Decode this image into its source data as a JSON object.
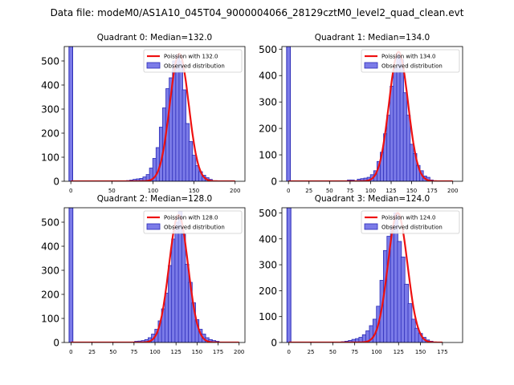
{
  "figure": {
    "suptitle": "Data file: modeM0/AS1A10_045T04_9000004066_28129cztM0_level2_quad_clean.evt"
  },
  "colors": {
    "bar_fill": "#7b7be8",
    "bar_edge": "#2b2bb8",
    "poisson_line": "#ee1111"
  },
  "chart_data": [
    {
      "type": "bar",
      "title": "Quadrant 0: Median=132.0",
      "xlim": [
        -8,
        212
      ],
      "ylim": [
        0,
        560
      ],
      "xticks": [
        0,
        50,
        100,
        150,
        200
      ],
      "yticks": [
        0,
        100,
        200,
        300,
        400,
        500
      ],
      "legend": [
        "Poission with 132.0",
        "Observed distribution"
      ],
      "legend_position": "top-right",
      "bin_width": 4.5,
      "spike": {
        "x": 0,
        "value": 560
      },
      "histogram": {
        "x": [
          70,
          74,
          78,
          82,
          86,
          90,
          94,
          98,
          102,
          106,
          110,
          114,
          118,
          122,
          126,
          130,
          134,
          138,
          142,
          146,
          150,
          154,
          158,
          162,
          166,
          170
        ],
        "values": [
          3,
          5,
          8,
          10,
          12,
          18,
          28,
          55,
          95,
          140,
          225,
          305,
          385,
          430,
          500,
          525,
          500,
          380,
          240,
          165,
          108,
          65,
          40,
          25,
          15,
          8
        ]
      },
      "poisson": {
        "mean": 132.0,
        "peak": 530
      }
    },
    {
      "type": "bar",
      "title": "Quadrant 1: Median=134.0",
      "xlim": [
        -8,
        212
      ],
      "ylim": [
        0,
        510
      ],
      "xticks": [
        0,
        25,
        50,
        75,
        100,
        125,
        150,
        175,
        200
      ],
      "yticks": [
        0,
        100,
        200,
        300,
        400,
        500
      ],
      "legend": [
        "Poission with 134.0",
        "Observed distribution"
      ],
      "legend_position": "top-right",
      "bin_width": 4.5,
      "spike": {
        "x": 0,
        "value": 510
      },
      "histogram": {
        "x": [
          74,
          78,
          86,
          90,
          94,
          98,
          102,
          106,
          110,
          114,
          118,
          122,
          126,
          130,
          134,
          138,
          142,
          146,
          150,
          154,
          158,
          162,
          166,
          170,
          174
        ],
        "values": [
          5,
          5,
          8,
          10,
          12,
          15,
          25,
          40,
          75,
          110,
          180,
          250,
          360,
          430,
          480,
          460,
          335,
          250,
          140,
          105,
          60,
          40,
          20,
          15,
          5
        ]
      },
      "poisson": {
        "mean": 134.0,
        "peak": 490
      }
    },
    {
      "type": "bar",
      "title": "Quadrant 2: Median=128.0",
      "xlim": [
        -8,
        207
      ],
      "ylim": [
        0,
        560
      ],
      "xticks": [
        0,
        25,
        50,
        75,
        100,
        125,
        150,
        175,
        200
      ],
      "yticks": [
        0,
        100,
        200,
        300,
        400,
        500
      ],
      "legend": [
        "Poission with 128.0",
        "Observed distribution"
      ],
      "legend_position": "top-right",
      "bin_width": 4.5,
      "spike": {
        "x": 0,
        "value": 560
      },
      "histogram": {
        "x": [
          78,
          82,
          86,
          90,
          94,
          98,
          102,
          106,
          110,
          114,
          118,
          122,
          126,
          130,
          134,
          138,
          142,
          146,
          150,
          154,
          158,
          162,
          166,
          170,
          174
        ],
        "values": [
          5,
          6,
          8,
          12,
          20,
          35,
          55,
          90,
          140,
          205,
          320,
          430,
          500,
          545,
          450,
          325,
          250,
          165,
          95,
          55,
          35,
          20,
          12,
          8,
          5
        ]
      },
      "poisson": {
        "mean": 128.0,
        "peak": 530
      }
    },
    {
      "type": "bar",
      "title": "Quadrant 3: Median=124.0",
      "xlim": [
        -8,
        198
      ],
      "ylim": [
        0,
        520
      ],
      "xticks": [
        0,
        25,
        50,
        75,
        100,
        125,
        150,
        175
      ],
      "yticks": [
        0,
        100,
        200,
        300,
        400,
        500
      ],
      "legend": [
        "Poission with 124.0",
        "Observed distribution"
      ],
      "legend_position": "top-right",
      "bin_width": 4.5,
      "spike": {
        "x": 0,
        "value": 520
      },
      "histogram": {
        "x": [
          62,
          66,
          70,
          74,
          78,
          82,
          86,
          90,
          94,
          98,
          102,
          106,
          110,
          114,
          118,
          122,
          126,
          130,
          134,
          138,
          142,
          146,
          150,
          154,
          158,
          162
        ],
        "values": [
          3,
          5,
          8,
          12,
          15,
          20,
          30,
          45,
          65,
          90,
          140,
          240,
          355,
          410,
          450,
          500,
          390,
          330,
          225,
          150,
          90,
          55,
          35,
          20,
          10,
          5
        ]
      },
      "poisson": {
        "mean": 124.0,
        "peak": 500
      }
    }
  ]
}
